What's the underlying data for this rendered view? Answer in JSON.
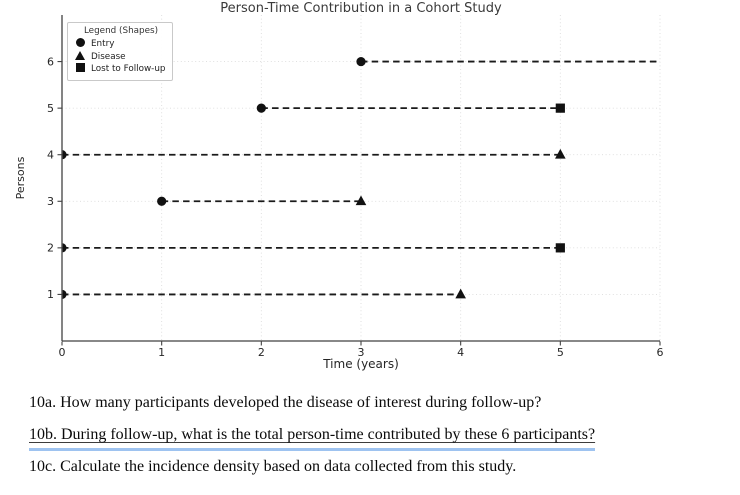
{
  "chart_data": {
    "type": "scatter",
    "title": "Person-Time Contribution in a Cohort Study",
    "xlabel": "Time (years)",
    "ylabel": "Persons",
    "xlim": [
      0,
      6
    ],
    "ylim": [
      0,
      7
    ],
    "xticks": [
      0,
      1,
      2,
      3,
      4,
      5,
      6
    ],
    "yticks": [
      1,
      2,
      3,
      4,
      5,
      6
    ],
    "grid": "dotted, both axes",
    "legend_position": "upper left",
    "series_note": "each person is a horizontal dashed segment from entry time to end time",
    "persons": [
      {
        "person": 1,
        "entry": 0,
        "end": 4,
        "end_event": "disease"
      },
      {
        "person": 2,
        "entry": 0,
        "end": 5,
        "end_event": "lost"
      },
      {
        "person": 3,
        "entry": 1,
        "end": 3,
        "end_event": "disease"
      },
      {
        "person": 4,
        "entry": 0,
        "end": 5,
        "end_event": "disease"
      },
      {
        "person": 5,
        "entry": 2,
        "end": 5,
        "end_event": "lost"
      },
      {
        "person": 6,
        "entry": 3,
        "end": 6,
        "end_event": "none"
      }
    ]
  },
  "legend": {
    "title": "Legend (Shapes)",
    "items": [
      {
        "marker": "circle",
        "label": "Entry"
      },
      {
        "marker": "triangle",
        "label": "Disease"
      },
      {
        "marker": "square",
        "label": "Lost to Follow-up"
      }
    ]
  },
  "questions": [
    {
      "id": "10a",
      "text": "10a. How many participants developed the disease of interest during follow-up?",
      "highlighted": false
    },
    {
      "id": "10b",
      "text": "10b. During follow-up, what is the total person-time contributed by these 6 participants?",
      "highlighted": true
    },
    {
      "id": "10c",
      "text": "10c. Calculate the incidence density based on data collected from this study.",
      "highlighted": false
    }
  ],
  "colors": {
    "marker": "#111111",
    "person_line": "#1a1a1a",
    "grid": "#dcdcdc",
    "spine": "#424242",
    "tick_label": "#262626",
    "title": "#3a3a3a",
    "highlight_underline": "#9ec3f0",
    "background": "#ffffff"
  }
}
